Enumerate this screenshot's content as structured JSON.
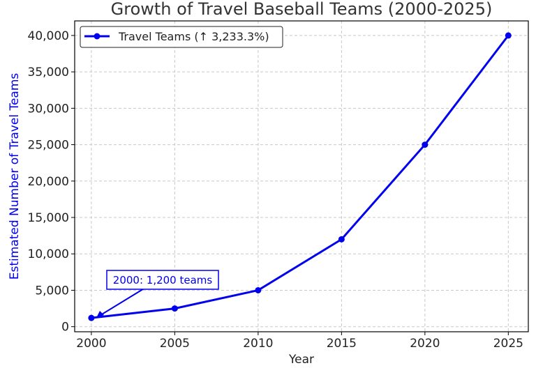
{
  "chart_data": {
    "type": "line",
    "title": "Growth of Travel Baseball Teams (2000-2025)",
    "xlabel": "Year",
    "ylabel": "Estimated Number of Travel Teams",
    "x": [
      2000,
      2005,
      2010,
      2015,
      2020,
      2025
    ],
    "series": [
      {
        "name": "Travel Teams (↑ 3,233.3%)",
        "values": [
          1200,
          2500,
          5000,
          12000,
          25000,
          40000
        ],
        "color": "#0000ee"
      }
    ],
    "xlim": [
      1999,
      2026.2
    ],
    "ylim": [
      -700,
      42000
    ],
    "xticks": [
      "2000",
      "2005",
      "2010",
      "2015",
      "2020",
      "2025"
    ],
    "yticks": [
      "0",
      "5,000",
      "10,000",
      "15,000",
      "20,000",
      "25,000",
      "30,000",
      "35,000",
      "40,000"
    ],
    "ylabel_color": "#0000ee",
    "grid": true,
    "legend_position": "top-left",
    "annotation": {
      "text": "2000: 1,200 teams",
      "target_x": 2000,
      "target_y": 1200,
      "color": "#0000ee"
    }
  }
}
